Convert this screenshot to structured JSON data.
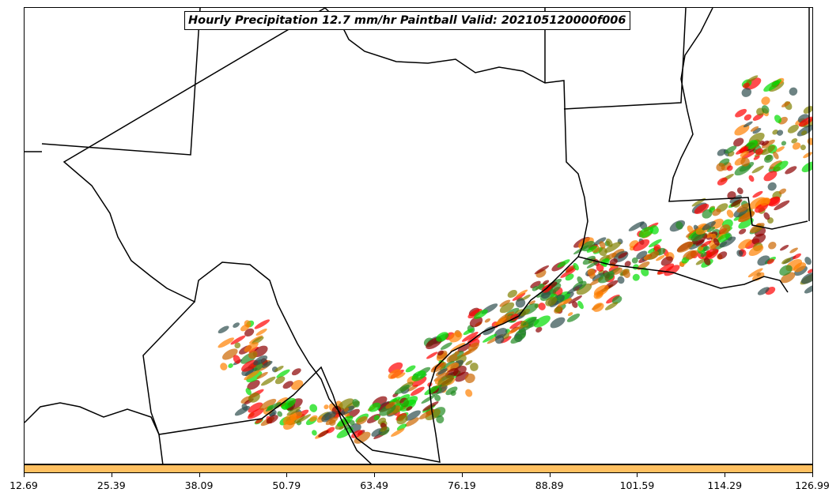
{
  "title": "Hourly Precipitation 12.7 mm/hr Paintball Valid: 202105120000f006",
  "colorbar": {
    "color": "#ffc061",
    "ticks": [
      "12.69",
      "25.39",
      "38.09",
      "50.79",
      "63.49",
      "76.19",
      "88.89",
      "101.59",
      "114.29",
      "126.99"
    ]
  },
  "paintball_colors": [
    "#ff0000",
    "#ff8000",
    "#8b0000",
    "#808000",
    "#228b22",
    "#00dd00",
    "#2f4f4f",
    "#cc6600"
  ],
  "map": {
    "boundary_color": "#000000",
    "background": "#ffffff"
  }
}
